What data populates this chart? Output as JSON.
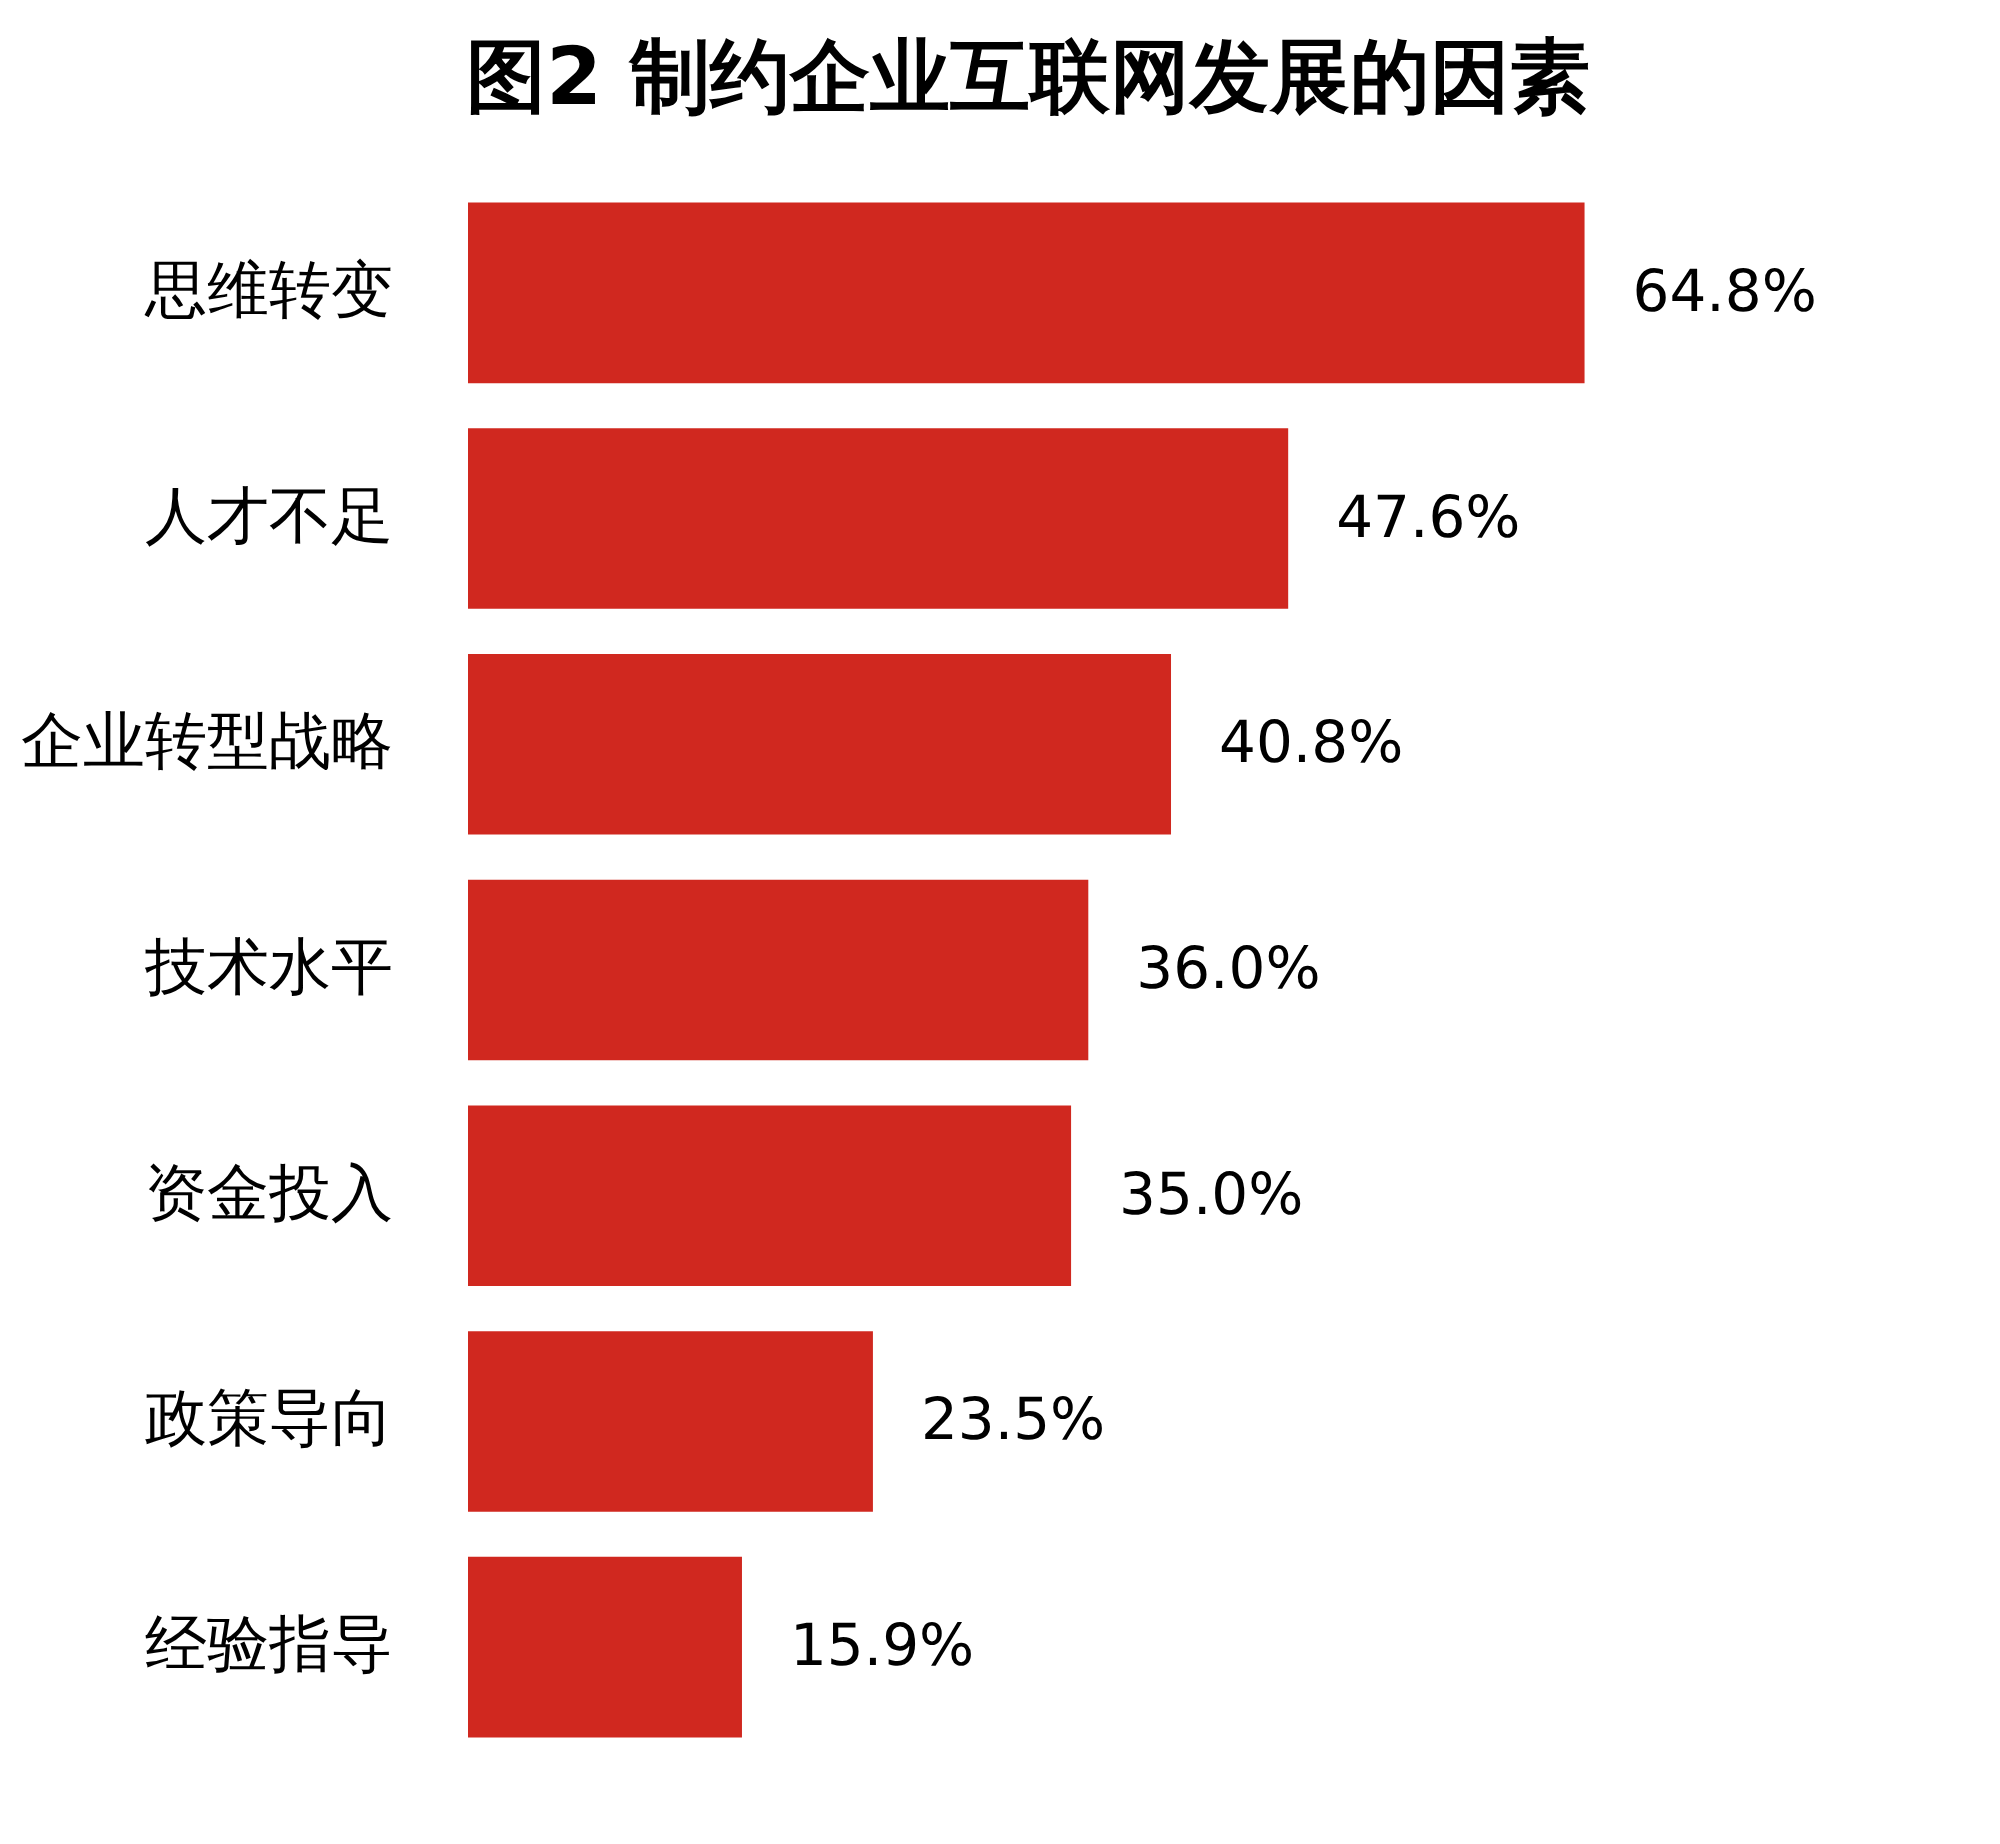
{
  "chart_data": {
    "type": "bar",
    "orientation": "horizontal",
    "title": "图2 制约企业互联网发展的因素",
    "categories": [
      "思维转变",
      "人才不足",
      "企业转型战略",
      "技术水平",
      "资金投入",
      "政策导向",
      "经验指导"
    ],
    "values": [
      64.8,
      47.6,
      40.8,
      36.0,
      35.0,
      23.5,
      15.9
    ],
    "value_labels": [
      "64.8%",
      "47.6%",
      "40.8%",
      "36.0%",
      "35.0%",
      "23.5%",
      "15.9%"
    ],
    "color": "#d0281f",
    "tick_labels": "y"
  }
}
